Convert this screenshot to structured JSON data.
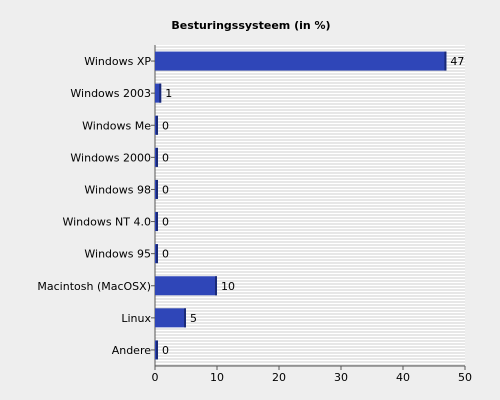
{
  "chart_data": {
    "type": "bar",
    "orientation": "horizontal",
    "title": "Besturingssysteem (in %)",
    "categories": [
      "Windows XP",
      "Windows 2003",
      "Windows Me",
      "Windows 2000",
      "Windows 98",
      "Windows NT 4.0",
      "Windows 95",
      "Macintosh (MacOSX)",
      "Linux",
      "Andere"
    ],
    "values": [
      47,
      1,
      0,
      0,
      0,
      0,
      0,
      10,
      5,
      0
    ],
    "xlim": [
      0,
      50
    ],
    "xticks": [
      0,
      10,
      20,
      30,
      40,
      50
    ],
    "xlabel": "",
    "ylabel": "",
    "grid": true,
    "colors": {
      "bar": "#2f46b8",
      "bar_edge": "#1a2a78",
      "background": "#eeeeee",
      "plot_background": "#ffffff",
      "grid": "#cfcfcf"
    }
  }
}
